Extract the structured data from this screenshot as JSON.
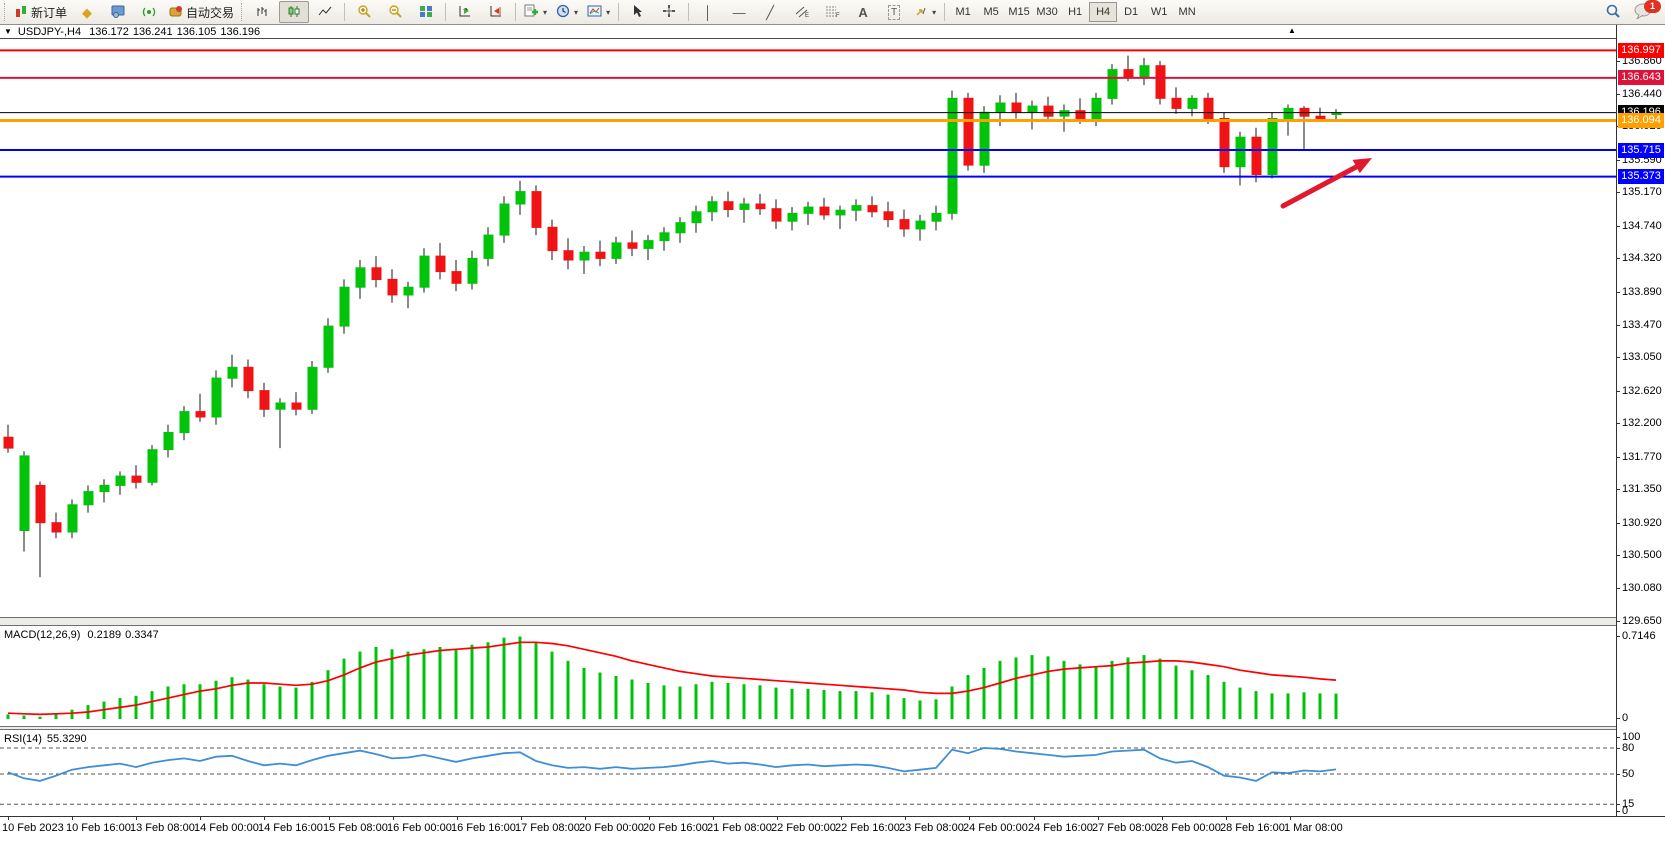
{
  "toolbar": {
    "new_order_label": "新订单",
    "autotrading_label": "自动交易",
    "timeframes": [
      "M1",
      "M5",
      "M15",
      "M30",
      "H1",
      "H4",
      "D1",
      "W1",
      "MN"
    ],
    "active_timeframe": "H4",
    "notification_count": "1",
    "icons": [
      "new-order",
      "gold-chart",
      "market-watch",
      "signal",
      "autotrading",
      "bar-chart",
      "candlestick",
      "line-chart",
      "zoom-in",
      "zoom-out",
      "tile-windows",
      "auto-scroll",
      "chart-shift",
      "add-indicator",
      "periods",
      "templates",
      "cursor",
      "crosshair",
      "vertical-line",
      "horizontal-line",
      "trendline",
      "equidistant-channel",
      "fibonacci",
      "text",
      "text-label",
      "arrows",
      "search",
      "notifications"
    ]
  },
  "chart": {
    "title": {
      "symbol_period": "USDJPY-,H4",
      "open": "136.172",
      "high": "136.241",
      "low": "136.105",
      "close": "136.196"
    },
    "price_ticks": [
      "136.860",
      "136.440",
      "136.020",
      "135.590",
      "135.170",
      "134.740",
      "134.320",
      "133.890",
      "133.470",
      "133.050",
      "132.620",
      "132.200",
      "131.770",
      "131.350",
      "130.920",
      "130.500",
      "130.080",
      "129.650"
    ],
    "price_tags": [
      {
        "value": "136.997",
        "color": "#FF0000"
      },
      {
        "value": "136.643",
        "color": "#DC143C"
      },
      {
        "value": "136.196",
        "color": "#000000"
      },
      {
        "value": "136.094",
        "color": "#FFA000"
      },
      {
        "value": "135.715",
        "color": "#0000FF"
      },
      {
        "value": "135.373",
        "color": "#0000FF"
      }
    ],
    "macd": {
      "name": "MACD(12,26,9)",
      "main_value": "0.2189",
      "signal_value": "0.3347",
      "axis_max": "0.7146",
      "axis_min": "0"
    },
    "rsi": {
      "name": "RSI(14)",
      "value": "55.3290",
      "axis_labels": [
        "100",
        "80",
        "50",
        "15",
        "0"
      ]
    }
  },
  "chart_data": {
    "type": "candlestick",
    "symbol": "USDJPY-",
    "period": "H4",
    "title": "USDJPY-,H4 136.172 136.241 136.105 136.196",
    "ylim": [
      129.68,
      137.14
    ],
    "price_axis_ticks": [
      136.86,
      136.44,
      136.02,
      135.59,
      135.17,
      134.74,
      134.32,
      133.89,
      133.47,
      133.05,
      132.62,
      132.2,
      131.77,
      131.35,
      130.92,
      130.5,
      130.08,
      129.65
    ],
    "x_labels": [
      "10 Feb 2023",
      "10 Feb 16:00",
      "13 Feb 08:00",
      "14 Feb 00:00",
      "14 Feb 16:00",
      "15 Feb 08:00",
      "16 Feb 00:00",
      "16 Feb 16:00",
      "17 Feb 08:00",
      "20 Feb 00:00",
      "20 Feb 16:00",
      "21 Feb 08:00",
      "22 Feb 00:00",
      "22 Feb 16:00",
      "23 Feb 08:00",
      "24 Feb 00:00",
      "24 Feb 16:00",
      "27 Feb 08:00",
      "28 Feb 00:00",
      "28 Feb 16:00",
      "1 Mar 08:00"
    ],
    "bars_per_label": 4,
    "up_color": "#00C40A",
    "down_color": "#F01313",
    "candles": [
      [
        132.02,
        132.18,
        131.82,
        131.88
      ],
      [
        130.82,
        131.84,
        130.55,
        131.78
      ],
      [
        131.4,
        131.45,
        130.22,
        130.92
      ],
      [
        130.92,
        131.05,
        130.72,
        130.8
      ],
      [
        130.8,
        131.22,
        130.72,
        131.15
      ],
      [
        131.15,
        131.4,
        131.05,
        131.32
      ],
      [
        131.32,
        131.48,
        131.18,
        131.4
      ],
      [
        131.4,
        131.58,
        131.28,
        131.52
      ],
      [
        131.52,
        131.66,
        131.36,
        131.44
      ],
      [
        131.44,
        131.92,
        131.4,
        131.86
      ],
      [
        131.86,
        132.18,
        131.76,
        132.08
      ],
      [
        132.08,
        132.42,
        131.98,
        132.35
      ],
      [
        132.35,
        132.58,
        132.22,
        132.28
      ],
      [
        132.28,
        132.88,
        132.18,
        132.78
      ],
      [
        132.78,
        133.08,
        132.66,
        132.92
      ],
      [
        132.92,
        133.02,
        132.52,
        132.62
      ],
      [
        132.62,
        132.72,
        132.28,
        132.38
      ],
      [
        132.38,
        132.52,
        131.88,
        132.46
      ],
      [
        132.46,
        132.6,
        132.3,
        132.38
      ],
      [
        132.38,
        133.0,
        132.32,
        132.92
      ],
      [
        132.92,
        133.55,
        132.85,
        133.45
      ],
      [
        133.45,
        134.05,
        133.35,
        133.95
      ],
      [
        133.95,
        134.3,
        133.8,
        134.2
      ],
      [
        134.2,
        134.35,
        133.95,
        134.05
      ],
      [
        134.05,
        134.18,
        133.75,
        133.85
      ],
      [
        133.85,
        134.02,
        133.68,
        133.95
      ],
      [
        133.95,
        134.45,
        133.88,
        134.35
      ],
      [
        134.35,
        134.52,
        134.05,
        134.15
      ],
      [
        134.15,
        134.3,
        133.9,
        134.0
      ],
      [
        134.0,
        134.42,
        133.92,
        134.32
      ],
      [
        134.32,
        134.72,
        134.22,
        134.62
      ],
      [
        134.62,
        135.12,
        134.52,
        135.02
      ],
      [
        135.02,
        135.32,
        134.88,
        135.18
      ],
      [
        135.18,
        135.26,
        134.62,
        134.72
      ],
      [
        134.72,
        134.82,
        134.3,
        134.42
      ],
      [
        134.42,
        134.58,
        134.18,
        134.3
      ],
      [
        134.3,
        134.48,
        134.12,
        134.4
      ],
      [
        134.4,
        134.55,
        134.22,
        134.32
      ],
      [
        134.32,
        134.6,
        134.25,
        134.52
      ],
      [
        134.52,
        134.68,
        134.35,
        134.45
      ],
      [
        134.45,
        134.62,
        134.3,
        134.55
      ],
      [
        134.55,
        134.72,
        134.42,
        134.65
      ],
      [
        134.65,
        134.85,
        134.52,
        134.78
      ],
      [
        134.78,
        135.0,
        134.65,
        134.92
      ],
      [
        134.92,
        135.12,
        134.8,
        135.05
      ],
      [
        135.05,
        135.18,
        134.85,
        134.95
      ],
      [
        134.95,
        135.1,
        134.78,
        135.02
      ],
      [
        135.02,
        135.15,
        134.88,
        134.96
      ],
      [
        134.96,
        135.08,
        134.7,
        134.8
      ],
      [
        134.8,
        134.98,
        134.68,
        134.9
      ],
      [
        134.9,
        135.05,
        134.75,
        134.98
      ],
      [
        134.98,
        135.1,
        134.82,
        134.88
      ],
      [
        134.88,
        135.0,
        134.7,
        134.94
      ],
      [
        134.94,
        135.08,
        134.8,
        135.0
      ],
      [
        135.0,
        135.12,
        134.85,
        134.92
      ],
      [
        134.92,
        135.05,
        134.72,
        134.82
      ],
      [
        134.82,
        134.95,
        134.6,
        134.7
      ],
      [
        134.7,
        134.88,
        134.55,
        134.8
      ],
      [
        134.8,
        135.0,
        134.68,
        134.9
      ],
      [
        134.9,
        136.48,
        134.82,
        136.38
      ],
      [
        136.38,
        136.45,
        135.45,
        135.52
      ],
      [
        135.52,
        136.28,
        135.42,
        136.2
      ],
      [
        136.2,
        136.42,
        136.02,
        136.32
      ],
      [
        136.32,
        136.45,
        136.12,
        136.2
      ],
      [
        136.2,
        136.35,
        135.98,
        136.28
      ],
      [
        136.28,
        136.4,
        136.08,
        136.15
      ],
      [
        136.15,
        136.3,
        135.95,
        136.22
      ],
      [
        136.22,
        136.38,
        136.05,
        136.1
      ],
      [
        136.1,
        136.45,
        136.02,
        136.38
      ],
      [
        136.38,
        136.82,
        136.3,
        136.75
      ],
      [
        136.75,
        136.93,
        136.6,
        136.65
      ],
      [
        136.65,
        136.9,
        136.55,
        136.8
      ],
      [
        136.8,
        136.86,
        136.3,
        136.38
      ],
      [
        136.38,
        136.52,
        136.18,
        136.25
      ],
      [
        136.25,
        136.42,
        136.15,
        136.38
      ],
      [
        136.38,
        136.45,
        136.05,
        136.12
      ],
      [
        136.12,
        136.2,
        135.42,
        135.5
      ],
      [
        135.5,
        135.95,
        135.26,
        135.88
      ],
      [
        135.88,
        136.0,
        135.3,
        135.4
      ],
      [
        135.4,
        136.2,
        135.35,
        136.12
      ],
      [
        136.12,
        136.3,
        135.9,
        136.25
      ],
      [
        136.25,
        136.28,
        135.72,
        136.15
      ],
      [
        136.15,
        136.26,
        136.08,
        136.12
      ],
      [
        136.172,
        136.241,
        136.105,
        136.196
      ]
    ],
    "levels": [
      {
        "price": 136.997,
        "color": "#FF0000",
        "thickness": 2
      },
      {
        "price": 136.643,
        "color": "#DC143C",
        "thickness": 2
      },
      {
        "price": 136.196,
        "color": "#000000",
        "thickness": 1,
        "role": "current_price"
      },
      {
        "price": 136.094,
        "color": "#FFA000",
        "thickness": 3
      },
      {
        "price": 135.715,
        "color": "#0000FF",
        "thickness": 2
      },
      {
        "price": 135.373,
        "color": "#0000FF",
        "thickness": 2
      }
    ],
    "macd": {
      "params": "12,26,9",
      "main_value": 0.2189,
      "signal_value": 0.3347,
      "axis_max": 0.7146,
      "axis_min": 0,
      "histogram_color": "#00C40A",
      "signal_color": "#FF0000",
      "histogram": [
        0.04,
        0.03,
        0.02,
        0.05,
        0.08,
        0.12,
        0.15,
        0.18,
        0.2,
        0.24,
        0.28,
        0.3,
        0.3,
        0.33,
        0.36,
        0.34,
        0.3,
        0.28,
        0.27,
        0.32,
        0.42,
        0.52,
        0.58,
        0.62,
        0.6,
        0.58,
        0.6,
        0.62,
        0.6,
        0.64,
        0.66,
        0.7,
        0.71,
        0.66,
        0.58,
        0.5,
        0.44,
        0.4,
        0.37,
        0.34,
        0.31,
        0.29,
        0.28,
        0.3,
        0.32,
        0.31,
        0.3,
        0.29,
        0.27,
        0.26,
        0.26,
        0.25,
        0.24,
        0.24,
        0.23,
        0.21,
        0.18,
        0.16,
        0.17,
        0.28,
        0.38,
        0.44,
        0.5,
        0.53,
        0.55,
        0.54,
        0.5,
        0.47,
        0.45,
        0.5,
        0.53,
        0.55,
        0.52,
        0.46,
        0.42,
        0.38,
        0.32,
        0.27,
        0.24,
        0.22,
        0.22,
        0.23,
        0.22,
        0.219
      ],
      "signal": [
        0.05,
        0.045,
        0.04,
        0.045,
        0.05,
        0.06,
        0.08,
        0.1,
        0.12,
        0.15,
        0.18,
        0.21,
        0.24,
        0.26,
        0.29,
        0.31,
        0.31,
        0.3,
        0.29,
        0.3,
        0.33,
        0.38,
        0.44,
        0.49,
        0.52,
        0.55,
        0.57,
        0.59,
        0.6,
        0.61,
        0.62,
        0.64,
        0.66,
        0.66,
        0.65,
        0.63,
        0.6,
        0.57,
        0.54,
        0.5,
        0.47,
        0.44,
        0.41,
        0.39,
        0.37,
        0.36,
        0.35,
        0.34,
        0.33,
        0.32,
        0.31,
        0.3,
        0.29,
        0.28,
        0.27,
        0.26,
        0.25,
        0.23,
        0.22,
        0.22,
        0.24,
        0.27,
        0.31,
        0.35,
        0.38,
        0.41,
        0.43,
        0.44,
        0.45,
        0.46,
        0.48,
        0.49,
        0.5,
        0.5,
        0.49,
        0.47,
        0.45,
        0.42,
        0.4,
        0.38,
        0.37,
        0.36,
        0.345,
        0.3347
      ]
    },
    "rsi": {
      "period": 14,
      "value": 55.329,
      "line_color": "#3E8FD6",
      "levels": [
        100,
        80,
        50,
        15,
        0
      ],
      "dashed_levels": [
        80,
        50,
        15
      ],
      "series": [
        52,
        45,
        42,
        48,
        55,
        58,
        60,
        62,
        58,
        63,
        66,
        68,
        65,
        70,
        71,
        65,
        60,
        62,
        60,
        66,
        71,
        74,
        77,
        73,
        68,
        69,
        72,
        68,
        64,
        68,
        71,
        74,
        75,
        65,
        60,
        57,
        58,
        56,
        58,
        56,
        57,
        58,
        60,
        63,
        65,
        62,
        63,
        61,
        58,
        60,
        61,
        59,
        60,
        61,
        60,
        57,
        53,
        55,
        57,
        78,
        74,
        80,
        79,
        76,
        74,
        72,
        70,
        71,
        72,
        76,
        77,
        78,
        68,
        63,
        65,
        58,
        48,
        46,
        42,
        52,
        51,
        54,
        53,
        55.3
      ],
      "label_100_note": "overbought/oversold dashed guides at 80, 50, 15"
    },
    "annotation_arrow": {
      "from": [
        1283,
        207
      ],
      "to": [
        1372,
        159
      ],
      "color": "#E0192E"
    }
  }
}
